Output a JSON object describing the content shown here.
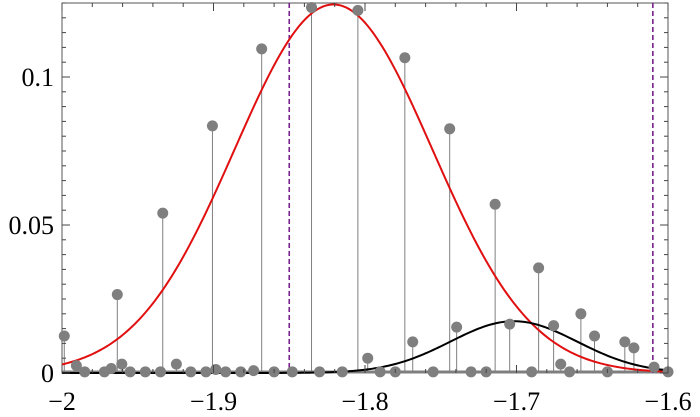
{
  "chart_data": {
    "type": "scatter",
    "title": "",
    "xlabel": "",
    "ylabel": "",
    "xlim": [
      -2.0,
      -1.6
    ],
    "ylim": [
      0,
      0.125
    ],
    "x_ticks": [
      {
        "value": -2.0,
        "label": "−2"
      },
      {
        "value": -1.9,
        "label": "−1.9"
      },
      {
        "value": -1.8,
        "label": "−1.8"
      },
      {
        "value": -1.7,
        "label": "−1.7"
      },
      {
        "value": -1.6,
        "label": "−1.6"
      }
    ],
    "y_ticks": [
      {
        "value": 0,
        "label": "0"
      },
      {
        "value": 0.05,
        "label": "0.05"
      },
      {
        "value": 0.1,
        "label": "0.1"
      }
    ],
    "grid": false,
    "vertical_lines": [
      {
        "x": -1.85,
        "color": "#7a1f8c",
        "style": "dashed"
      },
      {
        "x": -1.61,
        "color": "#7a1f8c",
        "style": "dashed"
      }
    ],
    "curves": [
      {
        "color": "#e01010",
        "amplitude": 0.1245,
        "mean": -1.8208,
        "sigma": 0.0653
      },
      {
        "color": "#000000",
        "amplitude": 0.0175,
        "mean": -1.7018,
        "sigma": 0.0418
      }
    ],
    "stems_color": "#7f7f7f",
    "points_color": "#7f7f7f",
    "series": [
      {
        "type": "stem",
        "points": [
          {
            "x": -1.9985,
            "y": 0.0125
          },
          {
            "x": -1.9635,
            "y": 0.0265
          },
          {
            "x": -1.9335,
            "y": 0.054
          },
          {
            "x": -1.9007,
            "y": 0.0835
          },
          {
            "x": -1.8682,
            "y": 0.1095
          },
          {
            "x": -1.8353,
            "y": 0.1235
          },
          {
            "x": -1.8047,
            "y": 0.1225
          },
          {
            "x": -1.7737,
            "y": 0.1065
          },
          {
            "x": -1.7441,
            "y": 0.0825
          },
          {
            "x": -1.7141,
            "y": 0.057
          },
          {
            "x": -1.6854,
            "y": 0.0355
          },
          {
            "x": -1.6575,
            "y": 0.02
          },
          {
            "x": -1.6285,
            "y": 0.0105
          }
        ]
      },
      {
        "type": "stem",
        "points": [
          {
            "x": -1.9905,
            "y": 0.0025
          },
          {
            "x": -1.9675,
            "y": 0.0015
          },
          {
            "x": -1.9605,
            "y": 0.003
          },
          {
            "x": -1.9245,
            "y": 0.003
          },
          {
            "x": -1.8985,
            "y": 0.0012
          },
          {
            "x": -1.8735,
            "y": 0.0008
          },
          {
            "x": -1.7982,
            "y": 0.005
          },
          {
            "x": -1.7685,
            "y": 0.0105
          },
          {
            "x": -1.7395,
            "y": 0.0155
          },
          {
            "x": -1.7045,
            "y": 0.0165
          },
          {
            "x": -1.6755,
            "y": 0.016
          },
          {
            "x": -1.6708,
            "y": 0.003
          },
          {
            "x": -1.6485,
            "y": 0.0125
          },
          {
            "x": -1.6225,
            "y": 0.0085
          },
          {
            "x": -1.6092,
            "y": 0.002
          }
        ]
      },
      {
        "type": "scatter",
        "points": [
          {
            "x": -1.985,
            "y": 0.0004
          },
          {
            "x": -1.972,
            "y": 0.0004
          },
          {
            "x": -1.955,
            "y": 0.0004
          },
          {
            "x": -1.945,
            "y": 0.0004
          },
          {
            "x": -1.935,
            "y": 0.0004
          },
          {
            "x": -1.915,
            "y": 0.0004
          },
          {
            "x": -1.905,
            "y": 0.0004
          },
          {
            "x": -1.892,
            "y": 0.0004
          },
          {
            "x": -1.882,
            "y": 0.0004
          },
          {
            "x": -1.86,
            "y": 0.0004
          },
          {
            "x": -1.848,
            "y": 0.0004
          },
          {
            "x": -1.83,
            "y": 0.0004
          },
          {
            "x": -1.815,
            "y": 0.0004
          },
          {
            "x": -1.79,
            "y": 0.0004
          },
          {
            "x": -1.78,
            "y": 0.0004
          },
          {
            "x": -1.755,
            "y": 0.0004
          },
          {
            "x": -1.73,
            "y": 0.0004
          },
          {
            "x": -1.72,
            "y": 0.0004
          },
          {
            "x": -1.69,
            "y": 0.0004
          },
          {
            "x": -1.665,
            "y": 0.0004
          },
          {
            "x": -1.64,
            "y": 0.0004
          },
          {
            "x": -1.6,
            "y": 0.0004
          }
        ]
      }
    ]
  }
}
